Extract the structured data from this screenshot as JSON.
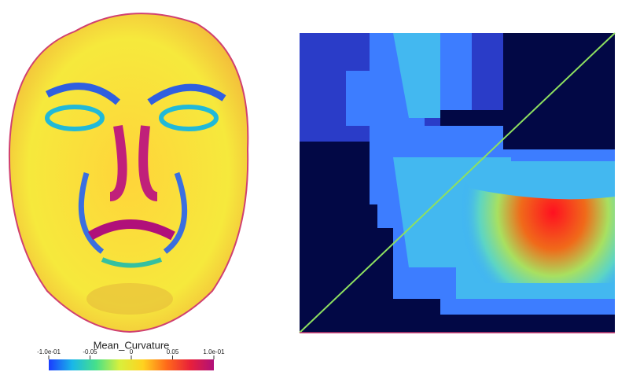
{
  "colorbar": {
    "title": "Mean_Curvature",
    "lim": [
      -0.1,
      0.1
    ],
    "ticks": [
      {
        "value": -0.1,
        "label": "-1.0e-01"
      },
      -0.05,
      0,
      0.05,
      {
        "value": 0.1,
        "label": "1.0e-01"
      }
    ],
    "colormap": [
      "#1a3cff",
      "#19b7e8",
      "#46e08a",
      "#d8f03c",
      "#ffd21f",
      "#ff6a1a",
      "#e8203a",
      "#b0107a"
    ]
  }
}
